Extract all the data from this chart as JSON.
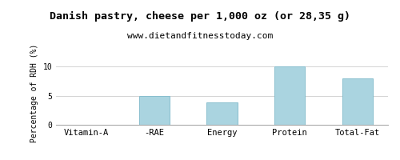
{
  "title": "Danish pastry, cheese per 1,000 oz (or 28,35 g)",
  "subtitle": "www.dietandfitnesstoday.com",
  "categories": [
    "Vitamin-A",
    "-RAE",
    "Energy",
    "Protein",
    "Total-Fat"
  ],
  "values": [
    0,
    5.0,
    3.9,
    10.0,
    8.0
  ],
  "bar_color": "#aad4e0",
  "bar_edge_color": "#88bece",
  "ylabel": "Percentage of RDH (%)",
  "ylim": [
    0,
    11
  ],
  "yticks": [
    0,
    5,
    10
  ],
  "background_color": "#ffffff",
  "plot_bg_color": "#ffffff",
  "title_fontsize": 9.5,
  "subtitle_fontsize": 8,
  "ylabel_fontsize": 7,
  "xlabel_fontsize": 7.5,
  "grid_color": "#cccccc",
  "border_color": "#aaaaaa"
}
